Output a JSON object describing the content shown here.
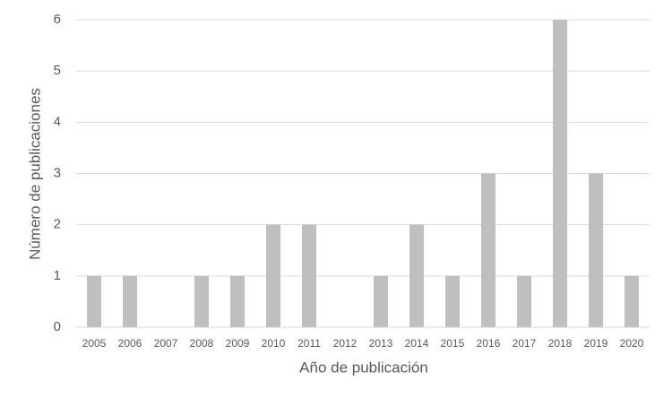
{
  "chart_data": {
    "type": "bar",
    "x_label": "Año de publicación",
    "y_label": "Número de publicaciones",
    "categories": [
      "2005",
      "2006",
      "2007",
      "2008",
      "2009",
      "2010",
      "2011",
      "2012",
      "2013",
      "2014",
      "2015",
      "2016",
      "2017",
      "2018",
      "2019",
      "2020"
    ],
    "values": [
      1,
      1,
      0,
      1,
      1,
      2,
      2,
      0,
      1,
      2,
      1,
      3,
      1,
      6,
      3,
      1
    ],
    "color": "#bfbfbf",
    "ylim": [
      0,
      6
    ],
    "yticks": [
      0,
      1,
      2,
      3,
      4,
      5,
      6
    ],
    "grid": true
  }
}
